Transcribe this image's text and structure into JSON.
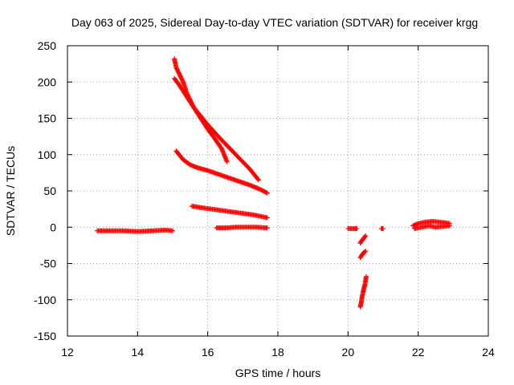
{
  "chart_data": {
    "type": "scatter",
    "title": "Day 063 of 2025, Sidereal Day-to-day VTEC variation (SDTVAR) for receiver krgg",
    "xlabel": "GPS time / hours",
    "ylabel": "SDTVAR / TECUs",
    "xlim": [
      12,
      24
    ],
    "ylim": [
      -150,
      250
    ],
    "xticks": [
      12,
      14,
      16,
      18,
      20,
      22,
      24
    ],
    "yticks": [
      -150,
      -100,
      -50,
      0,
      50,
      100,
      150,
      200,
      250
    ],
    "grid": true,
    "marker": "+",
    "series_color": "#ff0000",
    "segments": [
      {
        "name": "track-a",
        "x": [
          12.85,
          13.2,
          13.6,
          14.0,
          14.4,
          14.8,
          15.0
        ],
        "y": [
          -5,
          -5,
          -5,
          -6,
          -5,
          -4,
          -5
        ]
      },
      {
        "name": "track-b",
        "x": [
          15.05,
          15.1,
          15.2,
          15.3,
          15.4,
          15.5,
          15.6,
          15.8,
          16.0,
          16.2,
          16.4,
          16.55
        ],
        "y": [
          232,
          220,
          210,
          200,
          185,
          175,
          165,
          150,
          135,
          122,
          108,
          90
        ]
      },
      {
        "name": "track-c",
        "x": [
          15.05,
          15.2,
          15.4,
          15.6,
          15.8,
          16.0,
          16.3,
          16.6,
          16.9,
          17.2,
          17.45
        ],
        "y": [
          205,
          195,
          180,
          165,
          153,
          141,
          125,
          110,
          95,
          80,
          65
        ]
      },
      {
        "name": "track-d",
        "x": [
          15.1,
          15.3,
          15.5,
          15.7,
          16.0,
          16.3,
          16.6,
          16.9,
          17.2,
          17.5,
          17.7
        ],
        "y": [
          105,
          93,
          86,
          82,
          78,
          73,
          68,
          63,
          58,
          52,
          47
        ]
      },
      {
        "name": "track-e",
        "x": [
          15.55,
          15.8,
          16.1,
          16.4,
          16.7,
          17.0,
          17.3,
          17.6,
          17.7
        ],
        "y": [
          29,
          27,
          25,
          23,
          21,
          19,
          17,
          14,
          13
        ]
      },
      {
        "name": "track-f",
        "x": [
          16.25,
          16.5,
          16.8,
          17.1,
          17.4,
          17.7
        ],
        "y": [
          -1,
          -1,
          0,
          0,
          0,
          -1
        ]
      },
      {
        "name": "track-g",
        "x": [
          20.0,
          20.1,
          20.2,
          20.25
        ],
        "y": [
          -2,
          -2,
          -2,
          -2
        ]
      },
      {
        "name": "track-h",
        "x": [
          20.35,
          20.4,
          20.45,
          20.5
        ],
        "y": [
          -22,
          -18,
          -15,
          -12
        ]
      },
      {
        "name": "track-i",
        "x": [
          20.35,
          20.4,
          20.45,
          20.5
        ],
        "y": [
          -42,
          -38,
          -35,
          -33
        ]
      },
      {
        "name": "track-j",
        "x": [
          20.35,
          20.38,
          20.4,
          20.43,
          20.45,
          20.48,
          20.5,
          20.52
        ],
        "y": [
          -110,
          -103,
          -96,
          -90,
          -85,
          -80,
          -74,
          -68
        ]
      },
      {
        "name": "track-k",
        "x": [
          20.95,
          21.0
        ],
        "y": [
          -2,
          -2
        ]
      },
      {
        "name": "track-l",
        "x": [
          21.85,
          22.0,
          22.2,
          22.4,
          22.6,
          22.8,
          22.9
        ],
        "y": [
          2,
          5,
          7,
          8,
          7,
          6,
          5
        ]
      },
      {
        "name": "track-m",
        "x": [
          21.9,
          22.1,
          22.3,
          22.5,
          22.7,
          22.9
        ],
        "y": [
          -2,
          0,
          2,
          0,
          1,
          2
        ]
      }
    ]
  }
}
